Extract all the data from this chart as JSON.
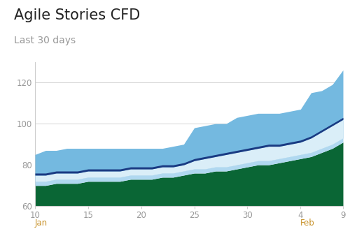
{
  "title": "Agile Stories CFD",
  "subtitle": "Last 30 days",
  "title_fontsize": 15,
  "subtitle_fontsize": 10,
  "background_color": "#ffffff",
  "plot_bg_color": "#ffffff",
  "border_color": "#cccccc",
  "ylim": [
    60,
    130
  ],
  "yticks": [
    60,
    80,
    100,
    120
  ],
  "xlabel_color": "#c8922a",
  "axis_label_color": "#999999",
  "x_labels": [
    "10",
    "15",
    "20",
    "25",
    "30",
    "4",
    "9"
  ],
  "tick_positions": [
    0,
    5,
    10,
    15,
    20,
    25,
    29
  ],
  "colors": {
    "medium_blue": "#74b9e0",
    "dark_blue": "#1a3a82",
    "pale_cyan": "#b0d8f0",
    "white_band": "#ffffff",
    "dark_green": "#0a6635"
  },
  "x": [
    0,
    1,
    2,
    3,
    4,
    5,
    6,
    7,
    8,
    9,
    10,
    11,
    12,
    13,
    14,
    15,
    16,
    17,
    18,
    19,
    20,
    21,
    22,
    23,
    24,
    25,
    26,
    27,
    28,
    29
  ],
  "green_top": [
    70,
    70,
    71,
    71,
    71,
    72,
    72,
    72,
    72,
    73,
    73,
    73,
    74,
    74,
    75,
    76,
    76,
    77,
    77,
    78,
    79,
    80,
    80,
    81,
    82,
    83,
    84,
    86,
    88,
    91
  ],
  "pale_cyan_top": [
    72,
    72,
    73,
    73,
    73,
    74,
    74,
    74,
    74,
    75,
    75,
    75,
    76,
    76,
    77,
    78,
    78,
    79,
    79,
    80,
    81,
    82,
    82,
    83,
    84,
    85,
    86,
    88,
    90,
    93
  ],
  "dark_blue_top": [
    75,
    75,
    76,
    76,
    76,
    77,
    77,
    77,
    77,
    78,
    78,
    78,
    79,
    79,
    80,
    82,
    83,
    84,
    85,
    86,
    87,
    88,
    89,
    89,
    90,
    91,
    93,
    96,
    99,
    102
  ],
  "white_top": [
    76,
    76,
    77,
    77,
    77,
    78,
    78,
    78,
    78,
    79,
    79,
    79,
    80,
    80,
    81,
    83,
    84,
    85,
    86,
    87,
    88,
    89,
    90,
    90,
    91,
    92,
    94,
    97,
    100,
    103
  ],
  "medium_blue_top": [
    85,
    87,
    87,
    88,
    88,
    88,
    88,
    88,
    88,
    88,
    88,
    88,
    88,
    89,
    90,
    98,
    99,
    100,
    100,
    103,
    104,
    105,
    105,
    105,
    106,
    107,
    115,
    116,
    119,
    126
  ]
}
